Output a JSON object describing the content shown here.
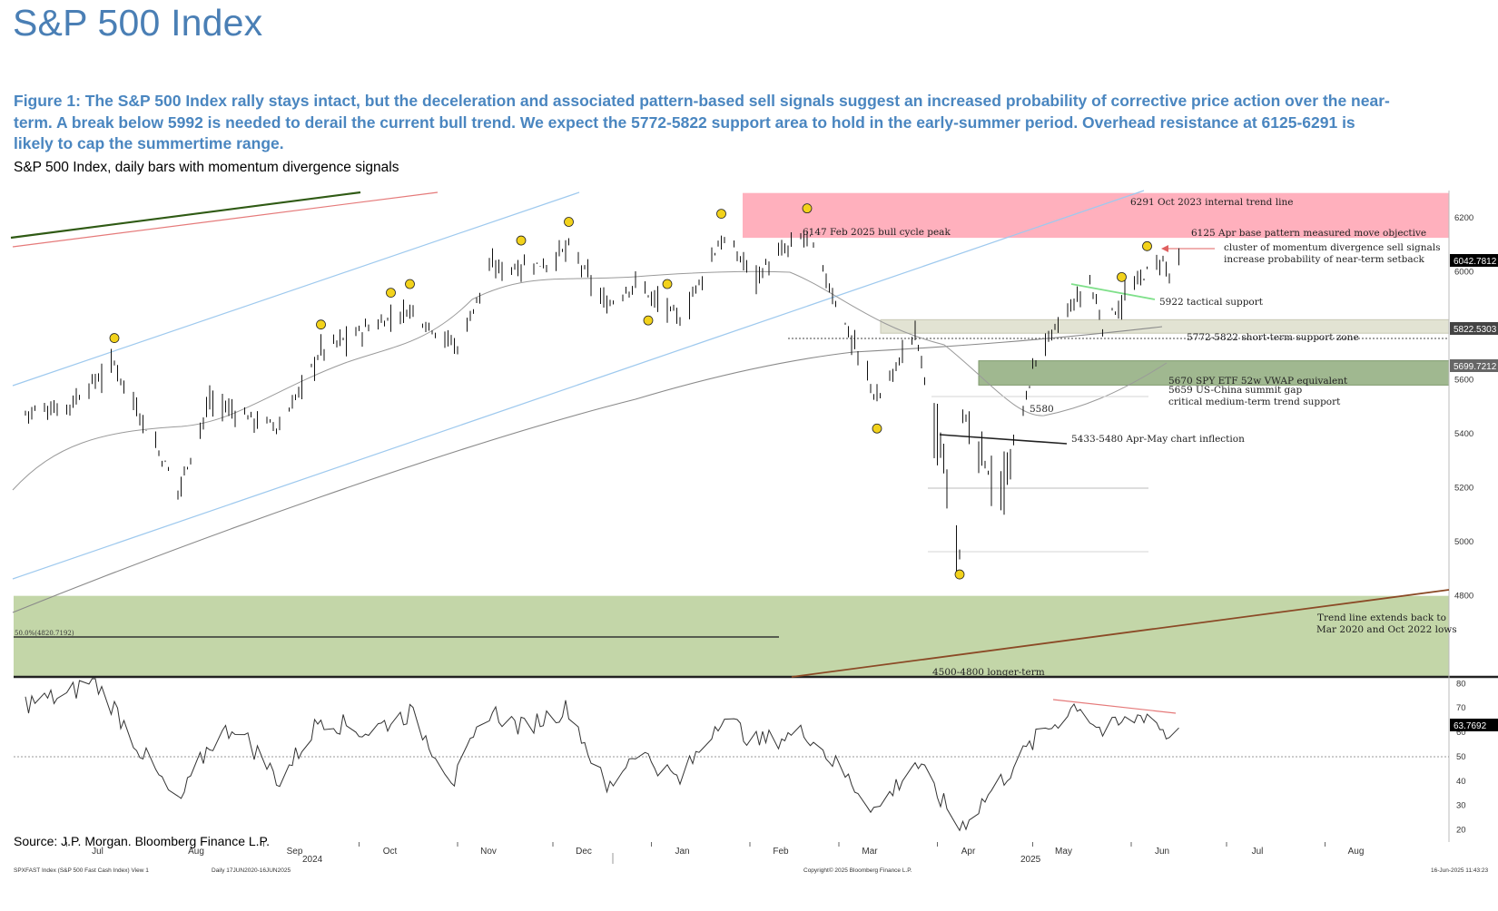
{
  "header": {
    "title": "S&P 500 Index",
    "caption": "Figure 1: The S&P 500 Index rally stays intact, but the deceleration and associated pattern-based sell signals suggest an increased probability of corrective price action over the near-term. A break below 5992 is needed to derail the current bull trend. We expect the 5772-5822 support area to hold in the early-summer period. Overhead resistance at 6125-6291 is likely to cap the summertime range.",
    "subtitle": "S&P 500 Index, daily bars with momentum divergence signals"
  },
  "footer": {
    "source": "Source: J.P. Morgan. Bloomberg Finance L.P.",
    "index_label": "SPXFAST Index (S&P 500 Fast Cash Index) View 1",
    "date_range": "Daily 17JUN2020-16JUN2025",
    "copyright": "Copyright© 2025 Bloomberg Finance L.P.",
    "timestamp": "16-Jun-2025 11:43:23"
  },
  "colors": {
    "resistance_zone": "#ffb0bd",
    "support_zone": "#e2e3d3",
    "medium_zone": "#a0b890",
    "long_zone": "#c3d6a8",
    "channel_line": "#9ec9ee",
    "ma_line": "#9a9a9a",
    "trend_brown": "#8b4a26",
    "dark_green": "#2f5a14",
    "signal_marker": "#f2d21b",
    "price_tag": "#000000"
  },
  "chart_data": [
    {
      "type": "candlestick",
      "panel": "price",
      "ylim": [
        4500,
        6300
      ],
      "y_ticks": [
        4800,
        5000,
        5200,
        5400,
        5600,
        5800,
        6000,
        6200
      ],
      "x_months": [
        "Jul",
        "Aug",
        "Sep",
        "Oct",
        "Nov",
        "Dec",
        "Jan",
        "Feb",
        "Mar",
        "Apr",
        "May",
        "Jun",
        "Jul",
        "Aug"
      ],
      "x_years": [
        "2024",
        "2025"
      ],
      "series_points": [
        [
          "2024-06-18",
          5480
        ],
        [
          "2024-07-01",
          5500
        ],
        [
          "2024-07-16",
          5660
        ],
        [
          "2024-08-05",
          5190
        ],
        [
          "2024-08-15",
          5520
        ],
        [
          "2024-09-06",
          5420
        ],
        [
          "2024-09-19",
          5710
        ],
        [
          "2024-10-17",
          5860
        ],
        [
          "2024-11-01",
          5720
        ],
        [
          "2024-11-11",
          6010
        ],
        [
          "2024-11-29",
          6030
        ],
        [
          "2024-12-06",
          6090
        ],
        [
          "2024-12-18",
          5870
        ],
        [
          "2024-12-27",
          5960
        ],
        [
          "2025-01-10",
          5820
        ],
        [
          "2025-01-23",
          6120
        ],
        [
          "2025-02-03",
          5990
        ],
        [
          "2025-02-19",
          6140
        ],
        [
          "2025-03-10",
          5610
        ],
        [
          "2025-03-13",
          5520
        ],
        [
          "2025-03-25",
          5780
        ],
        [
          "2025-04-08",
          4980
        ],
        [
          "2025-04-09",
          5460
        ],
        [
          "2025-04-21",
          5160
        ],
        [
          "2025-05-02",
          5680
        ],
        [
          "2025-05-12",
          5850
        ],
        [
          "2025-05-19",
          5960
        ],
        [
          "2025-05-23",
          5800
        ],
        [
          "2025-06-06",
          6000
        ],
        [
          "2025-06-11",
          6040
        ],
        [
          "2025-06-13",
          5980
        ],
        [
          "2025-06-16",
          6042.7812
        ]
      ],
      "price_tags": [
        "6042.7812",
        "5822.5303",
        "5699.7212"
      ],
      "zones": [
        {
          "label": "6291 Oct 2023 internal trend line",
          "low": 6125,
          "high": 6291
        },
        {
          "label": "5772-5822 short-term support zone",
          "low": 5772,
          "high": 5822
        },
        {
          "label": "5670 SPY ETF 52w VWAP equivalent",
          "low": 5580,
          "high": 5670
        },
        {
          "label": "4500-4800 longer-term",
          "low": 4500,
          "high": 4800
        }
      ],
      "annotations": {
        "peak": "6147 Feb 2025 bull cycle peak",
        "objective": "6125 Apr base pattern measured move objective",
        "cluster1": "cluster of momentum divergence sell signals",
        "cluster2": "increase probability of near-term setback",
        "tactical": "5922 tactical support",
        "gap1": "5659 US-China summit gap",
        "gap2": "critical medium-term trend support",
        "low5580": "5580",
        "inflection": "5433-5480 Apr-May chart inflection",
        "trend1": "Trend line extends back to",
        "trend2": "Mar 2020 and Oct 2022 lows",
        "fib50": "50.0%(4820.7192)"
      },
      "signal_dates": [
        "2024-07-16",
        "2024-09-19",
        "2024-10-11",
        "2024-10-17",
        "2024-11-21",
        "2024-12-06",
        "2024-12-31",
        "2025-01-06",
        "2025-01-23",
        "2025-02-19",
        "2025-03-13",
        "2025-04-08",
        "2025-05-29",
        "2025-06-06"
      ]
    },
    {
      "type": "line",
      "panel": "momentum",
      "ylim": [
        15,
        82
      ],
      "y_ticks": [
        20,
        30,
        40,
        50,
        60,
        70,
        80
      ],
      "reference_line": 50,
      "last_value": "63.7692",
      "series_points": [
        [
          "2024-06-18",
          72
        ],
        [
          "2024-07-01",
          75
        ],
        [
          "2024-07-09",
          82
        ],
        [
          "2024-07-16",
          70
        ],
        [
          "2024-07-23",
          55
        ],
        [
          "2024-08-05",
          30
        ],
        [
          "2024-08-15",
          55
        ],
        [
          "2024-08-23",
          63
        ],
        [
          "2024-09-06",
          40
        ],
        [
          "2024-09-19",
          66
        ],
        [
          "2024-10-03",
          60
        ],
        [
          "2024-10-17",
          68
        ],
        [
          "2024-10-31",
          40
        ],
        [
          "2024-11-11",
          69
        ],
        [
          "2024-11-21",
          62
        ],
        [
          "2024-12-06",
          70
        ],
        [
          "2024-12-18",
          36
        ],
        [
          "2024-12-27",
          53
        ],
        [
          "2025-01-10",
          40
        ],
        [
          "2025-01-23",
          67
        ],
        [
          "2025-02-03",
          56
        ],
        [
          "2025-02-19",
          60
        ],
        [
          "2025-03-10",
          32
        ],
        [
          "2025-03-13",
          28
        ],
        [
          "2025-03-25",
          48
        ],
        [
          "2025-04-08",
          21
        ],
        [
          "2025-04-21",
          40
        ],
        [
          "2025-05-02",
          57
        ],
        [
          "2025-05-15",
          72
        ],
        [
          "2025-05-23",
          60
        ],
        [
          "2025-06-06",
          68
        ],
        [
          "2025-06-13",
          58
        ],
        [
          "2025-06-16",
          63.7692
        ]
      ]
    }
  ]
}
